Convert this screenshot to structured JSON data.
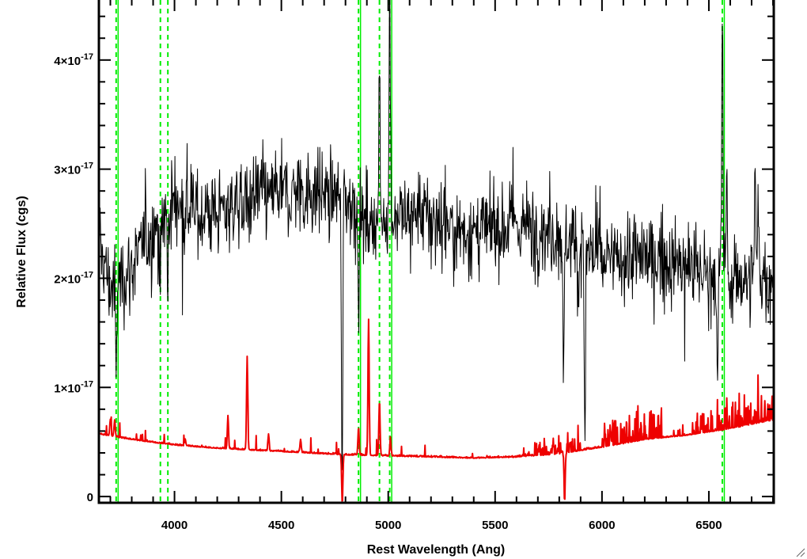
{
  "chart_data": {
    "type": "line",
    "xlabel": "Rest Wavelength (Ang)",
    "ylabel": "Relative Flux (cgs)",
    "xlim": [
      3650,
      6800
    ],
    "ylim": [
      -5e-19,
      4.55e-17
    ],
    "x_ticks": [
      4000,
      4500,
      5000,
      5500,
      6000,
      6500
    ],
    "x_tick_labels": [
      "4000",
      "4500",
      "5000",
      "5500",
      "6000",
      "6500"
    ],
    "y_ticks": [
      0,
      1e-17,
      2e-17,
      3e-17,
      4e-17
    ],
    "y_tick_labels": [
      {
        "mantissa": "0",
        "exp": ""
      },
      {
        "mantissa": "1×10",
        "exp": "-17"
      },
      {
        "mantissa": "2×10",
        "exp": "-17"
      },
      {
        "mantissa": "3×10",
        "exp": "-17"
      },
      {
        "mantissa": "4×10",
        "exp": "-17"
      }
    ],
    "grid": false,
    "series": [
      {
        "color": "#000000",
        "style": "noisy-spectrum",
        "continuum_anchors": [
          [
            3650,
            2.3
          ],
          [
            3700,
            1.9
          ],
          [
            3800,
            2.1
          ],
          [
            3900,
            2.45
          ],
          [
            4000,
            2.7
          ],
          [
            4100,
            2.6
          ],
          [
            4200,
            2.6
          ],
          [
            4300,
            2.7
          ],
          [
            4400,
            2.75
          ],
          [
            4600,
            2.8
          ],
          [
            4800,
            2.75
          ],
          [
            4900,
            2.5
          ],
          [
            5000,
            2.6
          ],
          [
            5200,
            2.55
          ],
          [
            5400,
            2.4
          ],
          [
            5600,
            2.5
          ],
          [
            5800,
            2.4
          ],
          [
            5900,
            2.35
          ],
          [
            6000,
            2.15
          ],
          [
            6200,
            2.2
          ],
          [
            6400,
            2.1
          ],
          [
            6600,
            2.0
          ],
          [
            6800,
            2.0
          ]
        ],
        "features": [
          [
            3727,
            -0.9
          ],
          [
            3932,
            -0.6
          ],
          [
            3968,
            -0.7
          ],
          [
            4340,
            -0.3
          ],
          [
            4784,
            -2.9
          ],
          [
            4861,
            -0.7
          ],
          [
            4959,
            1.2
          ],
          [
            5007,
            2.0
          ],
          [
            5820,
            -1.5
          ],
          [
            5890,
            -0.7
          ],
          [
            5920,
            -2.1
          ],
          [
            6540,
            -1.2
          ],
          [
            6563,
            2.4
          ],
          [
            6583,
            1.0
          ],
          [
            6716,
            1.0
          ],
          [
            6731,
            0.8
          ]
        ]
      },
      {
        "color": "#ee0000",
        "style": "error-spectrum",
        "continuum_anchors": [
          [
            3650,
            0.57
          ],
          [
            3800,
            0.52
          ],
          [
            4000,
            0.47
          ],
          [
            4200,
            0.44
          ],
          [
            4400,
            0.42
          ],
          [
            4600,
            0.4
          ],
          [
            4800,
            0.38
          ],
          [
            5000,
            0.37
          ],
          [
            5200,
            0.36
          ],
          [
            5400,
            0.35
          ],
          [
            5600,
            0.36
          ],
          [
            5800,
            0.39
          ],
          [
            6000,
            0.45
          ],
          [
            6200,
            0.52
          ],
          [
            6400,
            0.56
          ],
          [
            6600,
            0.62
          ],
          [
            6800,
            0.7
          ]
        ],
        "features": [
          [
            3700,
            0.15
          ],
          [
            3720,
            0.15
          ],
          [
            4050,
            0.06
          ],
          [
            4250,
            0.3
          ],
          [
            4340,
            0.85
          ],
          [
            4440,
            0.15
          ],
          [
            4590,
            0.12
          ],
          [
            4785,
            -0.45
          ],
          [
            4861,
            0.25
          ],
          [
            4908,
            1.25
          ],
          [
            4959,
            0.5
          ],
          [
            5010,
            0.15
          ],
          [
            5825,
            -0.45
          ]
        ]
      }
    ],
    "vertical_markers": {
      "color": "#00ee00",
      "dashed": [
        3727,
        3934,
        3969,
        4861,
        4959,
        5007,
        6563
      ],
      "solid": [
        3727,
        4861,
        5007,
        6563
      ]
    }
  }
}
